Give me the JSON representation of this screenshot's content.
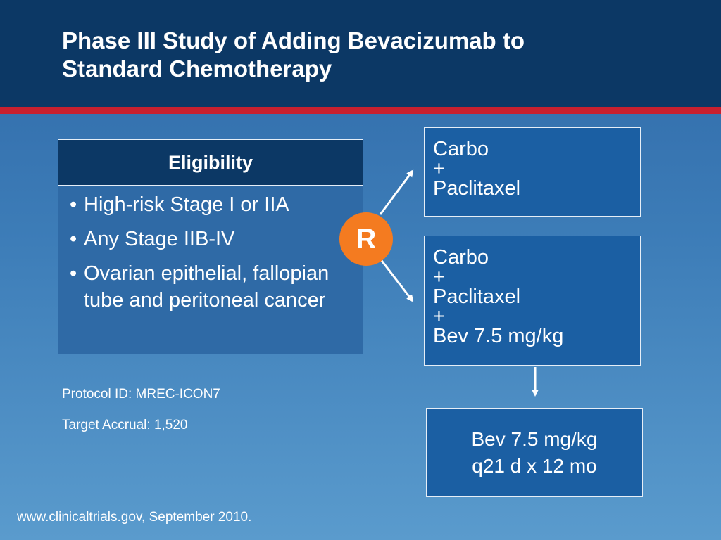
{
  "title": {
    "line1": "Phase III Study of Adding Bevacizumab to",
    "line2": "Standard Chemotherapy"
  },
  "eligibility": {
    "header": "Eligibility",
    "bullet": "•",
    "items": [
      "High-risk Stage I or IIA",
      "Any Stage IIB-IV",
      "Ovarian epithelial, fallopian tube and peritoneal cancer"
    ]
  },
  "randomization": {
    "label": "R"
  },
  "arms": [
    {
      "lines": [
        "Carbo",
        "+",
        "Paclitaxel"
      ]
    },
    {
      "lines": [
        "Carbo",
        "+",
        "Paclitaxel",
        "+",
        "Bev 7.5 mg/kg"
      ]
    }
  ],
  "maintenance": {
    "line1": "Bev 7.5 mg/kg",
    "line2": "q21 d x 12 mo"
  },
  "protocol_id": "Protocol ID: MREC-ICON7",
  "target_accrual": "Target Accrual: 1,520",
  "source": "www.clinicaltrials.gov, September 2010.",
  "colors": {
    "header_bg": "#0c3865",
    "accent_red": "#c8202f",
    "r_circle": "#f47b20",
    "box_bg": "#1b5fa3"
  }
}
